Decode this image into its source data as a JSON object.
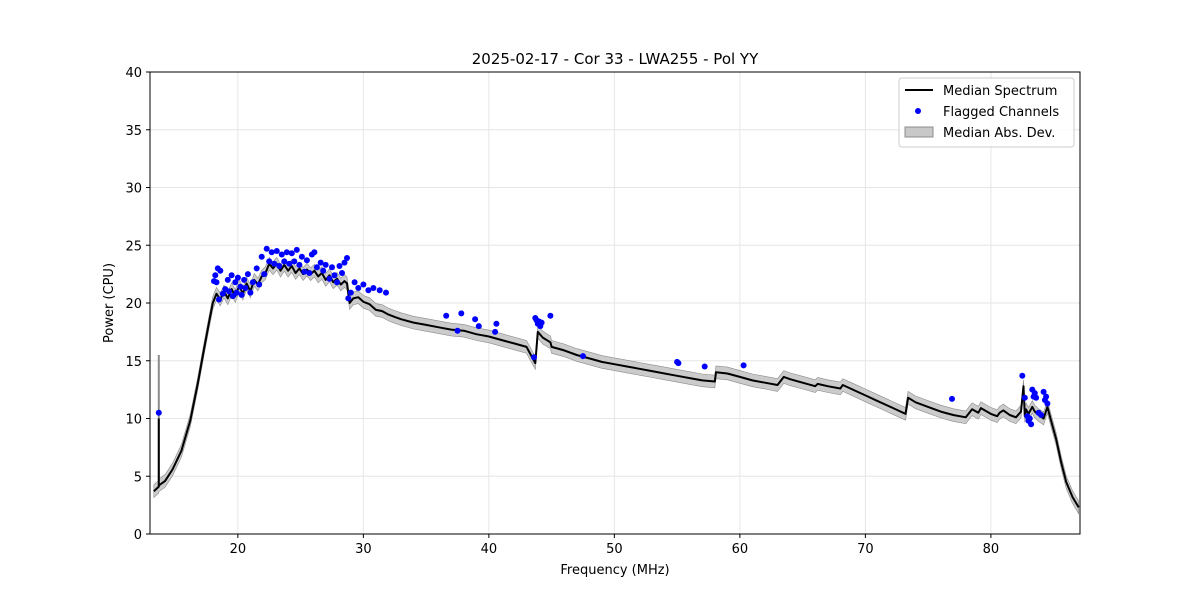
{
  "chart_data": {
    "type": "line",
    "title": "2025-02-17 - Cor 33 - LWA255 - Pol YY",
    "xlabel": "Frequency (MHz)",
    "ylabel": "Power (CPU)",
    "xlim": [
      13.0,
      87.1
    ],
    "ylim": [
      0,
      40
    ],
    "xticks": [
      20,
      30,
      40,
      50,
      60,
      70,
      80
    ],
    "yticks": [
      0,
      5,
      10,
      15,
      20,
      25,
      30,
      35,
      40
    ],
    "grid": true,
    "legend": {
      "position": "top-right",
      "entries": [
        "Median Spectrum",
        "Flagged Channels",
        "Median Abs. Dev."
      ]
    },
    "colors": {
      "median": "#000000",
      "flagged": "#0000ff",
      "mad_fill": "#c8c8c8",
      "mad_edge": "#8c8c8c"
    },
    "series": [
      {
        "name": "Median Spectrum",
        "x": [
          13.3,
          13.7,
          13.7,
          14.2,
          14.8,
          15.5,
          16.2,
          16.8,
          17.3,
          17.7,
          18.0,
          18.3,
          18.6,
          18.9,
          19.2,
          19.5,
          19.8,
          20.1,
          20.4,
          20.7,
          21.0,
          21.3,
          21.6,
          21.9,
          22.2,
          22.5,
          22.8,
          23.1,
          23.4,
          23.7,
          24.0,
          24.3,
          24.6,
          24.9,
          25.2,
          25.5,
          25.8,
          26.1,
          26.4,
          26.7,
          27.0,
          27.3,
          27.6,
          27.9,
          28.2,
          28.5,
          28.7,
          28.9,
          29.2,
          29.6,
          30.0,
          30.5,
          31.0,
          31.5,
          32.0,
          32.5,
          33.0,
          34.0,
          35.0,
          36.0,
          37.0,
          38.0,
          39.0,
          40.0,
          41.0,
          42.0,
          43.0,
          43.7,
          43.9,
          44.3,
          44.9,
          45.0,
          46.0,
          47.0,
          48.0,
          49.0,
          50.0,
          51.0,
          52.0,
          53.0,
          54.0,
          55.0,
          56.0,
          57.0,
          58.0,
          58.1,
          59.0,
          60.0,
          61.0,
          62.0,
          63.0,
          63.5,
          64.0,
          65.0,
          66.0,
          66.2,
          67.0,
          68.0,
          68.2,
          69.0,
          70.0,
          71.0,
          72.0,
          73.2,
          73.4,
          74.0,
          75.0,
          76.0,
          77.0,
          78.0,
          78.5,
          79.0,
          79.2,
          80.0,
          80.5,
          80.7,
          81.0,
          81.5,
          82.0,
          82.4,
          82.6,
          82.7,
          82.8,
          83.0,
          83.3,
          83.5,
          83.8,
          84.2,
          84.5,
          84.8,
          85.2,
          85.6,
          86.0,
          86.5,
          87.0
        ],
        "values": [
          3.7,
          4.1,
          4.2,
          4.6,
          5.6,
          7.2,
          9.8,
          13.0,
          16.0,
          18.3,
          20.0,
          20.8,
          20.3,
          21.0,
          20.4,
          21.2,
          20.6,
          21.5,
          20.8,
          21.7,
          21.0,
          22.0,
          21.6,
          22.3,
          22.6,
          23.4,
          23.0,
          23.4,
          22.8,
          23.3,
          22.8,
          23.2,
          22.6,
          23.0,
          22.5,
          22.9,
          22.5,
          22.8,
          22.3,
          22.6,
          22.0,
          22.4,
          21.8,
          22.1,
          21.6,
          21.9,
          21.7,
          20.0,
          20.4,
          20.5,
          20.1,
          19.9,
          19.4,
          19.3,
          19.0,
          18.8,
          18.6,
          18.3,
          18.1,
          17.9,
          17.7,
          17.6,
          17.3,
          17.1,
          16.8,
          16.5,
          16.2,
          14.8,
          17.5,
          17.0,
          16.6,
          16.2,
          15.9,
          15.5,
          15.2,
          14.9,
          14.7,
          14.5,
          14.3,
          14.1,
          13.9,
          13.7,
          13.5,
          13.3,
          13.2,
          14.0,
          13.9,
          13.6,
          13.3,
          13.1,
          12.9,
          13.6,
          13.4,
          13.1,
          12.8,
          13.0,
          12.8,
          12.6,
          12.9,
          12.5,
          12.0,
          11.5,
          11.0,
          10.4,
          11.8,
          11.4,
          11.0,
          10.6,
          10.3,
          10.1,
          10.8,
          10.5,
          10.9,
          10.4,
          10.2,
          10.5,
          10.7,
          10.3,
          10.1,
          10.6,
          12.8,
          10.2,
          10.8,
          10.4,
          11.0,
          10.6,
          10.3,
          10.0,
          11.0,
          9.8,
          8.2,
          6.2,
          4.5,
          3.2,
          2.3
        ]
      },
      {
        "name": "Flagged Channels",
        "x": [
          13.7,
          18.1,
          18.2,
          18.3,
          18.4,
          18.5,
          18.6,
          18.8,
          19.0,
          19.2,
          19.3,
          19.5,
          19.6,
          19.8,
          19.9,
          20.0,
          20.2,
          20.3,
          20.5,
          20.6,
          20.8,
          21.0,
          21.2,
          21.5,
          21.7,
          21.9,
          22.1,
          22.3,
          22.5,
          22.7,
          22.9,
          23.1,
          23.3,
          23.5,
          23.7,
          23.9,
          24.1,
          24.3,
          24.5,
          24.7,
          24.9,
          25.1,
          25.3,
          25.5,
          25.7,
          25.9,
          26.1,
          26.3,
          26.6,
          26.8,
          27.0,
          27.3,
          27.5,
          27.7,
          27.9,
          28.1,
          28.3,
          28.5,
          28.7,
          28.8,
          29.0,
          29.3,
          29.6,
          30.0,
          30.4,
          30.8,
          31.3,
          31.8,
          36.6,
          37.5,
          37.8,
          38.9,
          39.2,
          40.5,
          40.6,
          43.6,
          43.7,
          43.8,
          43.9,
          44.0,
          44.1,
          44.2,
          44.9,
          47.5,
          55.0,
          55.1,
          57.2,
          60.3,
          76.9,
          82.5,
          82.7,
          82.9,
          83.0,
          83.1,
          83.2,
          83.3,
          83.4,
          83.5,
          83.6,
          83.8,
          84.0,
          84.2,
          84.3,
          84.4,
          84.5
        ],
        "values": [
          10.5,
          21.9,
          22.4,
          21.8,
          23.0,
          20.3,
          22.8,
          20.8,
          21.2,
          22.0,
          21.0,
          22.4,
          20.6,
          21.8,
          20.9,
          22.2,
          21.4,
          20.7,
          22.0,
          21.3,
          22.5,
          20.9,
          21.8,
          23.0,
          21.6,
          24.0,
          22.5,
          24.7,
          23.6,
          24.4,
          23.4,
          24.5,
          23.2,
          24.2,
          23.6,
          24.4,
          23.4,
          24.3,
          23.6,
          24.6,
          23.3,
          24.0,
          22.7,
          23.7,
          22.6,
          24.2,
          24.4,
          23.1,
          23.5,
          22.8,
          23.3,
          22.1,
          23.1,
          22.4,
          21.8,
          23.2,
          22.6,
          23.5,
          23.9,
          20.4,
          20.9,
          21.8,
          21.3,
          21.6,
          21.1,
          21.3,
          21.1,
          20.9,
          18.9,
          17.6,
          19.1,
          18.6,
          18.0,
          17.5,
          18.2,
          15.3,
          18.7,
          18.5,
          18.2,
          18.4,
          18.0,
          18.3,
          18.9,
          15.4,
          14.9,
          14.8,
          14.5,
          14.6,
          11.7,
          13.7,
          11.8,
          10.2,
          9.8,
          10.0,
          9.5,
          12.5,
          11.9,
          12.2,
          11.8,
          10.5,
          10.3,
          12.3,
          11.6,
          11.9,
          11.3
        ]
      },
      {
        "name": "Median Abs. Dev.",
        "spread": 0.55,
        "spike": {
          "x": 13.7,
          "lower": 4.2,
          "upper": 15.5
        }
      }
    ]
  }
}
